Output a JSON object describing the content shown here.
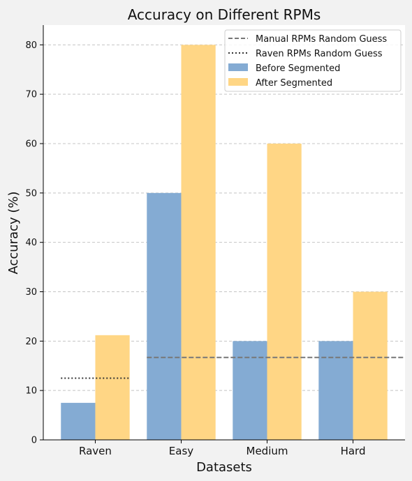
{
  "chart_data": {
    "type": "bar",
    "title": "Accuracy on Different RPMs",
    "xlabel": "Datasets",
    "ylabel": "Accuracy (%)",
    "categories": [
      "Raven",
      "Easy",
      "Medium",
      "Hard"
    ],
    "ylim": [
      0,
      84
    ],
    "yticks": [
      "0",
      "10",
      "20",
      "30",
      "40",
      "50",
      "60",
      "70",
      "80"
    ],
    "grid": true,
    "legend_position": "top-right",
    "series": [
      {
        "name": "Before Segmented",
        "color": "#84abd3",
        "values": [
          7.5,
          50,
          20,
          20
        ]
      },
      {
        "name": "After Segmented",
        "color": "#ffd685",
        "values": [
          21.2,
          80,
          60,
          30
        ]
      }
    ],
    "reference_lines": [
      {
        "name": "Manual RPMs Random Guess",
        "style": "dashed",
        "color": "#777777",
        "y": 16.7,
        "categories": [
          "Easy",
          "Medium",
          "Hard"
        ]
      },
      {
        "name": "Raven RPMs Random Guess",
        "style": "dotted",
        "color": "#333333",
        "y": 12.5,
        "categories": [
          "Raven"
        ]
      }
    ]
  }
}
